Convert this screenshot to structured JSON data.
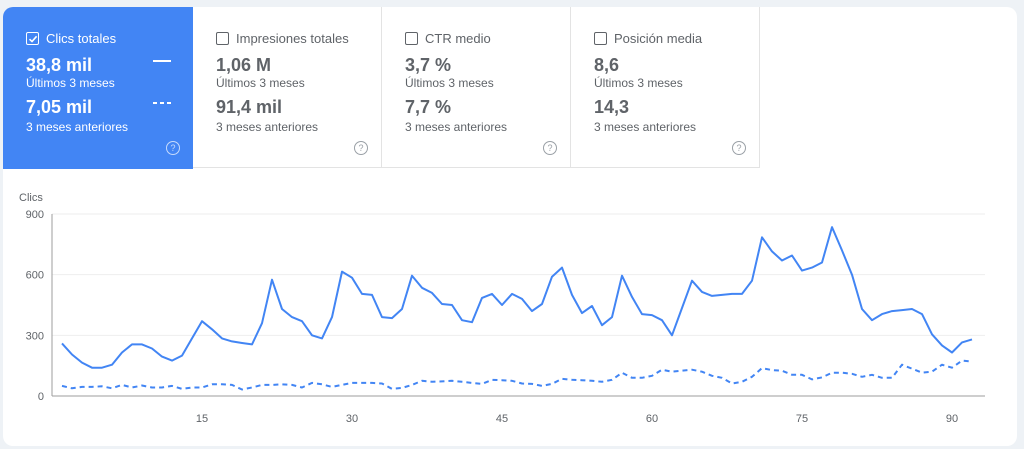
{
  "tiles": [
    {
      "label": "Clics totales",
      "checked": true,
      "current_value": "38,8 mil",
      "current_label": "Últimos 3 meses",
      "previous_value": "7,05 mil",
      "previous_label": "3 meses anteriores",
      "help": "?"
    },
    {
      "label": "Impresiones totales",
      "checked": false,
      "current_value": "1,06 M",
      "current_label": "Últimos 3 meses",
      "previous_value": "91,4 mil",
      "previous_label": "3 meses anteriores",
      "help": "?"
    },
    {
      "label": "CTR medio",
      "checked": false,
      "current_value": "3,7 %",
      "current_label": "Últimos 3 meses",
      "previous_value": "7,7 %",
      "previous_label": "3 meses anteriores",
      "help": "?"
    },
    {
      "label": "Posición media",
      "checked": false,
      "current_value": "8,6",
      "current_label": "Últimos 3 meses",
      "previous_value": "14,3",
      "previous_label": "3 meses anteriores",
      "help": "?"
    }
  ],
  "colors": {
    "accent": "#4285f4",
    "grid": "#eeeeee",
    "axis": "#9e9e9e",
    "text": "#5f6368"
  },
  "chart_data": {
    "type": "line",
    "title": "",
    "ylabel": "Clics",
    "xlabel": "",
    "ylim": [
      0,
      900
    ],
    "yticks": [
      0,
      300,
      600,
      900
    ],
    "xticks": [
      15,
      30,
      45,
      60,
      75,
      90
    ],
    "grid": true,
    "x": [
      1,
      2,
      3,
      4,
      5,
      6,
      7,
      8,
      9,
      10,
      11,
      12,
      13,
      14,
      15,
      16,
      17,
      18,
      19,
      20,
      21,
      22,
      23,
      24,
      25,
      26,
      27,
      28,
      29,
      30,
      31,
      32,
      33,
      34,
      35,
      36,
      37,
      38,
      39,
      40,
      41,
      42,
      43,
      44,
      45,
      46,
      47,
      48,
      49,
      50,
      51,
      52,
      53,
      54,
      55,
      56,
      57,
      58,
      59,
      60,
      61,
      62,
      63,
      64,
      65,
      66,
      67,
      68,
      69,
      70,
      71,
      72,
      73,
      74,
      75,
      76,
      77,
      78,
      79,
      80,
      81,
      82,
      83,
      84,
      85,
      86,
      87,
      88,
      89,
      90,
      91,
      92
    ],
    "series": [
      {
        "name": "Últimos 3 meses",
        "style": "solid",
        "values": [
          260,
          205,
          165,
          140,
          140,
          155,
          215,
          255,
          255,
          235,
          195,
          175,
          200,
          285,
          370,
          330,
          285,
          270,
          262,
          255,
          360,
          575,
          430,
          390,
          370,
          300,
          285,
          390,
          615,
          585,
          505,
          500,
          390,
          385,
          430,
          595,
          535,
          510,
          455,
          450,
          375,
          365,
          485,
          505,
          450,
          505,
          480,
          420,
          455,
          590,
          635,
          500,
          410,
          445,
          350,
          390,
          595,
          490,
          405,
          400,
          375,
          300,
          435,
          570,
          515,
          495,
          500,
          505,
          505,
          570,
          785,
          715,
          670,
          695,
          620,
          635,
          660,
          835,
          720,
          600,
          430,
          375,
          405,
          420,
          425,
          430,
          405,
          305,
          250,
          215,
          265,
          280
        ]
      },
      {
        "name": "3 meses anteriores",
        "style": "dashed",
        "values": [
          50,
          38,
          45,
          45,
          48,
          38,
          55,
          42,
          52,
          42,
          42,
          50,
          35,
          42,
          42,
          58,
          58,
          55,
          32,
          42,
          55,
          55,
          58,
          55,
          42,
          65,
          58,
          45,
          55,
          65,
          65,
          65,
          62,
          35,
          40,
          55,
          75,
          70,
          72,
          75,
          70,
          65,
          60,
          80,
          78,
          75,
          62,
          60,
          50,
          60,
          85,
          80,
          78,
          75,
          70,
          80,
          115,
          90,
          90,
          100,
          130,
          120,
          125,
          130,
          120,
          100,
          90,
          62,
          70,
          95,
          138,
          128,
          125,
          105,
          105,
          82,
          92,
          115,
          115,
          110,
          95,
          105,
          90,
          90,
          155,
          135,
          115,
          120,
          155,
          140,
          175,
          170
        ]
      }
    ]
  }
}
